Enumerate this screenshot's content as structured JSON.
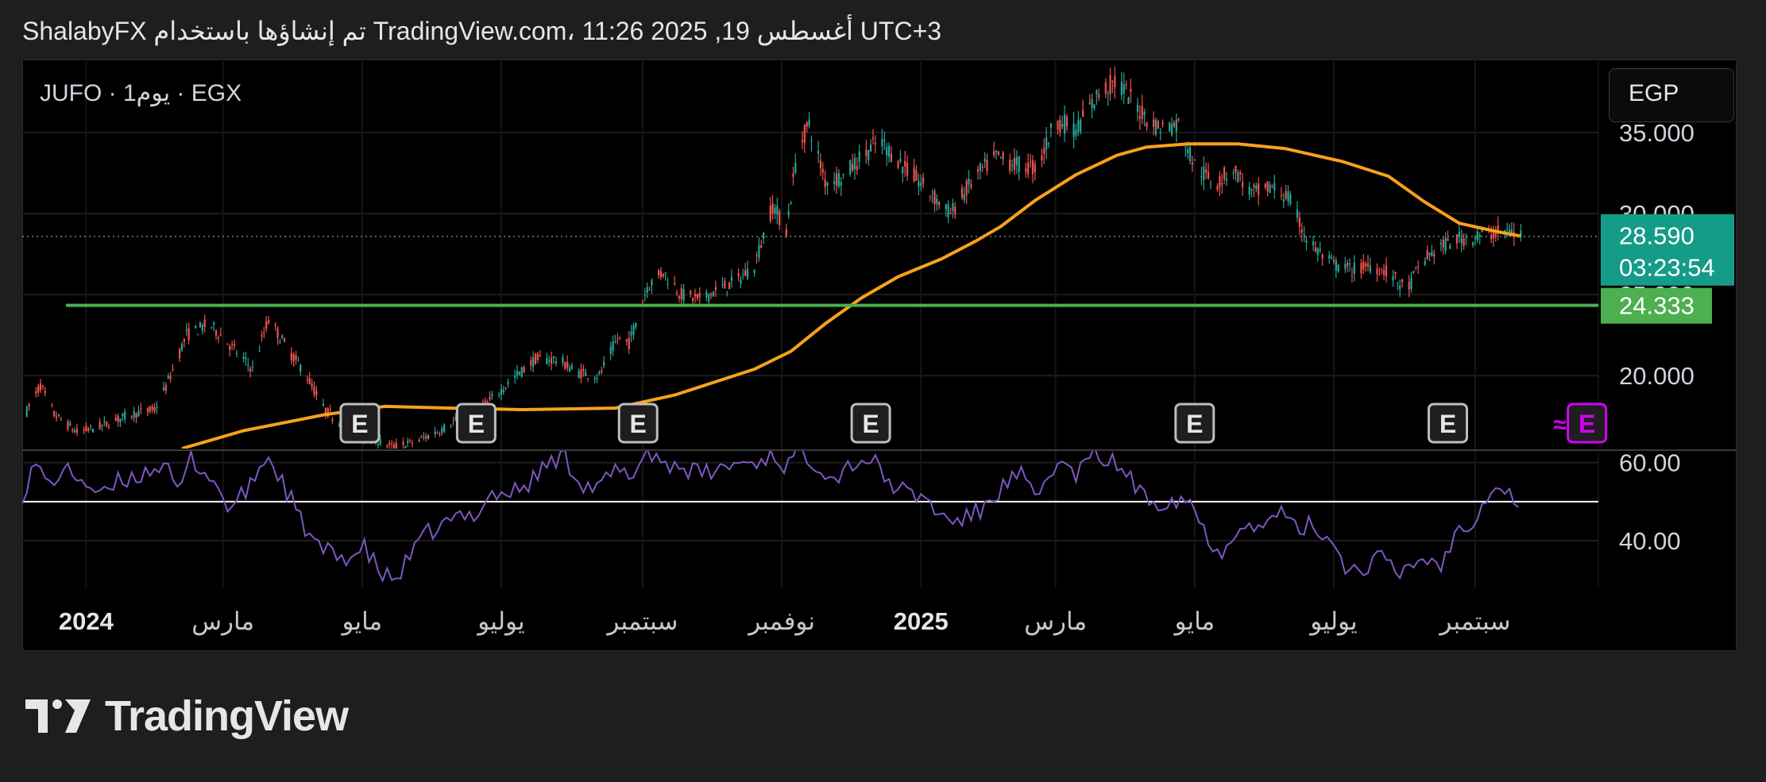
{
  "header": {
    "text": "ShalabyFX تم إنشاؤها باستخدام TradingView.com، 11:26 2025 ,19 أغسطس UTC+3"
  },
  "symbol_line": "JUFO · 1يوم · EGX",
  "currency_button": "EGP",
  "price_label": {
    "price": "28.590",
    "countdown": "03:23:54",
    "bg": "#159c88"
  },
  "level_label": {
    "price": "24.333",
    "bg": "#4caf50"
  },
  "earnings_marker": "E",
  "earnings_upcoming_prefix": "≈",
  "brand": {
    "name": "TradingView"
  },
  "colors": {
    "up": "#26a69a",
    "down": "#ef5350",
    "ma": "#f7a21b",
    "rsi": "#7e57c2",
    "level": "#4caf50",
    "upcoming": "#d500f9"
  },
  "chart_data": {
    "type": "candlestick",
    "price_axis": {
      "ticks": [
        20,
        25,
        30,
        35
      ],
      "tick_labels": [
        "20.000",
        "25.000",
        "30.000",
        "35.000"
      ],
      "range": [
        15.5,
        39.5
      ]
    },
    "rsi_axis": {
      "ticks": [
        40,
        60
      ],
      "tick_labels": [
        "40.00",
        "60.00"
      ],
      "range": [
        28,
        63
      ],
      "reference_line": 50
    },
    "time_axis": {
      "range": [
        "2023-12-04",
        "2025-10-25"
      ],
      "labels": [
        {
          "date": "2024-01-01",
          "text": "2024",
          "bold": true
        },
        {
          "date": "2024-03-01",
          "text": "مارس"
        },
        {
          "date": "2024-05-01",
          "text": "مايو"
        },
        {
          "date": "2024-07-01",
          "text": "يوليو"
        },
        {
          "date": "2024-09-01",
          "text": "سبتمبر"
        },
        {
          "date": "2024-11-01",
          "text": "نوفمبر"
        },
        {
          "date": "2025-01-01",
          "text": "2025",
          "bold": true
        },
        {
          "date": "2025-03-01",
          "text": "مارس"
        },
        {
          "date": "2025-05-01",
          "text": "مايو"
        },
        {
          "date": "2025-07-01",
          "text": "يوليو"
        },
        {
          "date": "2025-09-01",
          "text": "سبتمبر"
        }
      ]
    },
    "horizontal_level": 24.333,
    "last_price": 28.59,
    "price_path": [
      [
        "2023-12-06",
        17.8
      ],
      [
        "2023-12-12",
        19.4
      ],
      [
        "2023-12-18",
        17.6
      ],
      [
        "2023-12-28",
        16.5
      ],
      [
        "2024-01-08",
        16.9
      ],
      [
        "2024-01-20",
        17.6
      ],
      [
        "2024-01-31",
        17.9
      ],
      [
        "2024-02-05",
        19.3
      ],
      [
        "2024-02-14",
        22.5
      ],
      [
        "2024-02-24",
        23.2
      ],
      [
        "2024-03-04",
        21.9
      ],
      [
        "2024-03-14",
        20.4
      ],
      [
        "2024-03-21",
        23.5
      ],
      [
        "2024-03-30",
        21.5
      ],
      [
        "2024-04-06",
        20.2
      ],
      [
        "2024-04-14",
        18.0
      ],
      [
        "2024-04-24",
        16.7
      ],
      [
        "2024-05-04",
        16.2
      ],
      [
        "2024-05-14",
        15.6
      ],
      [
        "2024-05-24",
        15.9
      ],
      [
        "2024-06-04",
        16.6
      ],
      [
        "2024-06-15",
        17.6
      ],
      [
        "2024-06-25",
        18.3
      ],
      [
        "2024-07-06",
        19.8
      ],
      [
        "2024-07-16",
        21.0
      ],
      [
        "2024-07-26",
        21.0
      ],
      [
        "2024-08-03",
        20.2
      ],
      [
        "2024-08-13",
        20.0
      ],
      [
        "2024-08-21",
        22.3
      ],
      [
        "2024-08-26",
        22.0
      ],
      [
        "2024-09-03",
        25.5
      ],
      [
        "2024-09-10",
        26.4
      ],
      [
        "2024-09-18",
        25.0
      ],
      [
        "2024-09-26",
        24.7
      ],
      [
        "2024-10-04",
        25.3
      ],
      [
        "2024-10-12",
        25.8
      ],
      [
        "2024-10-20",
        26.8
      ],
      [
        "2024-10-28",
        30.5
      ],
      [
        "2024-11-03",
        29.0
      ],
      [
        "2024-11-08",
        34.0
      ],
      [
        "2024-11-13",
        35.5
      ],
      [
        "2024-11-20",
        32.0
      ],
      [
        "2024-11-28",
        32.3
      ],
      [
        "2024-12-06",
        33.5
      ],
      [
        "2024-12-14",
        34.5
      ],
      [
        "2024-12-24",
        33.0
      ],
      [
        "2025-01-04",
        31.4
      ],
      [
        "2025-01-14",
        30.0
      ],
      [
        "2025-01-25",
        32.3
      ],
      [
        "2025-02-03",
        33.5
      ],
      [
        "2025-02-12",
        33.0
      ],
      [
        "2025-02-21",
        32.8
      ],
      [
        "2025-03-01",
        35.8
      ],
      [
        "2025-03-10",
        35.2
      ],
      [
        "2025-03-20",
        37.4
      ],
      [
        "2025-03-28",
        38.2
      ],
      [
        "2025-04-06",
        36.5
      ],
      [
        "2025-04-15",
        35.3
      ],
      [
        "2025-04-24",
        35.5
      ],
      [
        "2025-05-01",
        33.0
      ],
      [
        "2025-05-10",
        31.8
      ],
      [
        "2025-05-18",
        32.8
      ],
      [
        "2025-05-26",
        31.2
      ],
      [
        "2025-06-04",
        31.6
      ],
      [
        "2025-06-11",
        31.0
      ],
      [
        "2025-06-20",
        28.2
      ],
      [
        "2025-06-30",
        26.9
      ],
      [
        "2025-07-09",
        26.5
      ],
      [
        "2025-07-17",
        26.8
      ],
      [
        "2025-07-25",
        26.4
      ],
      [
        "2025-08-02",
        25.2
      ],
      [
        "2025-08-08",
        26.9
      ],
      [
        "2025-08-15",
        27.8
      ],
      [
        "2025-08-24",
        28.4
      ],
      [
        "2025-09-02",
        28.6
      ],
      [
        "2025-09-10",
        28.8
      ],
      [
        "2025-09-16",
        28.9
      ],
      [
        "2025-09-21",
        28.6
      ]
    ],
    "ma_path": [
      [
        "2024-02-12",
        15.5
      ],
      [
        "2024-03-10",
        16.6
      ],
      [
        "2024-04-15",
        17.6
      ],
      [
        "2024-05-11",
        18.1
      ],
      [
        "2024-06-08",
        18.0
      ],
      [
        "2024-07-10",
        17.9
      ],
      [
        "2024-08-20",
        18.0
      ],
      [
        "2024-09-15",
        18.8
      ],
      [
        "2024-10-20",
        20.4
      ],
      [
        "2024-11-05",
        21.5
      ],
      [
        "2024-11-20",
        23.2
      ],
      [
        "2024-12-06",
        24.8
      ],
      [
        "2024-12-22",
        26.1
      ],
      [
        "2025-01-10",
        27.2
      ],
      [
        "2025-01-25",
        28.3
      ],
      [
        "2025-02-05",
        29.2
      ],
      [
        "2025-02-20",
        30.8
      ],
      [
        "2025-03-10",
        32.4
      ],
      [
        "2025-03-28",
        33.6
      ],
      [
        "2025-04-10",
        34.1
      ],
      [
        "2025-04-28",
        34.3
      ],
      [
        "2025-05-20",
        34.3
      ],
      [
        "2025-06-10",
        34.0
      ],
      [
        "2025-07-05",
        33.2
      ],
      [
        "2025-07-25",
        32.3
      ],
      [
        "2025-08-10",
        30.7
      ],
      [
        "2025-08-25",
        29.4
      ],
      [
        "2025-09-10",
        28.9
      ],
      [
        "2025-09-21",
        28.6
      ]
    ],
    "rsi_path": [
      [
        "2023-12-04",
        52
      ],
      [
        "2023-12-10",
        60
      ],
      [
        "2023-12-15",
        54
      ],
      [
        "2023-12-22",
        58
      ],
      [
        "2023-12-30",
        56
      ],
      [
        "2024-01-08",
        51
      ],
      [
        "2024-01-15",
        55
      ],
      [
        "2024-01-25",
        57
      ],
      [
        "2024-02-04",
        60
      ],
      [
        "2024-02-10",
        52
      ],
      [
        "2024-02-16",
        61
      ],
      [
        "2024-02-25",
        56
      ],
      [
        "2024-03-04",
        48
      ],
      [
        "2024-03-12",
        53
      ],
      [
        "2024-03-20",
        62
      ],
      [
        "2024-03-28",
        54
      ],
      [
        "2024-04-05",
        44
      ],
      [
        "2024-04-12",
        38
      ],
      [
        "2024-04-20",
        36
      ],
      [
        "2024-04-26",
        36
      ],
      [
        "2024-05-02",
        38
      ],
      [
        "2024-05-10",
        31
      ],
      [
        "2024-05-16",
        30
      ],
      [
        "2024-05-22",
        36
      ],
      [
        "2024-05-30",
        42
      ],
      [
        "2024-06-06",
        44
      ],
      [
        "2024-06-12",
        46
      ],
      [
        "2024-06-20",
        47
      ],
      [
        "2024-06-26",
        52
      ],
      [
        "2024-07-04",
        52
      ],
      [
        "2024-07-12",
        54
      ],
      [
        "2024-07-20",
        59
      ],
      [
        "2024-07-28",
        62
      ],
      [
        "2024-08-05",
        55
      ],
      [
        "2024-08-12",
        53
      ],
      [
        "2024-08-20",
        58
      ],
      [
        "2024-08-26",
        56
      ],
      [
        "2024-09-03",
        63
      ],
      [
        "2024-09-10",
        60
      ],
      [
        "2024-09-18",
        59
      ],
      [
        "2024-09-26",
        57
      ],
      [
        "2024-10-04",
        58
      ],
      [
        "2024-10-12",
        60
      ],
      [
        "2024-10-20",
        60
      ],
      [
        "2024-10-28",
        62
      ],
      [
        "2024-11-03",
        59
      ],
      [
        "2024-11-09",
        63
      ],
      [
        "2024-11-16",
        60
      ],
      [
        "2024-11-24",
        56
      ],
      [
        "2024-12-02",
        60
      ],
      [
        "2024-12-10",
        61
      ],
      [
        "2024-12-18",
        55
      ],
      [
        "2024-12-26",
        52
      ],
      [
        "2025-01-03",
        51
      ],
      [
        "2025-01-10",
        46
      ],
      [
        "2025-01-18",
        45
      ],
      [
        "2025-01-28",
        48
      ],
      [
        "2025-02-06",
        54
      ],
      [
        "2025-02-14",
        57
      ],
      [
        "2025-02-20",
        50
      ],
      [
        "2025-03-01",
        60
      ],
      [
        "2025-03-10",
        57
      ],
      [
        "2025-03-18",
        62
      ],
      [
        "2025-03-26",
        60
      ],
      [
        "2025-04-02",
        57
      ],
      [
        "2025-04-08",
        51
      ],
      [
        "2025-04-16",
        50
      ],
      [
        "2025-04-24",
        51
      ],
      [
        "2025-04-30",
        50
      ],
      [
        "2025-05-06",
        41
      ],
      [
        "2025-05-14",
        37
      ],
      [
        "2025-05-22",
        46
      ],
      [
        "2025-05-30",
        42
      ],
      [
        "2025-06-06",
        48
      ],
      [
        "2025-06-14",
        43
      ],
      [
        "2025-06-22",
        44
      ],
      [
        "2025-06-30",
        40
      ],
      [
        "2025-07-08",
        32
      ],
      [
        "2025-07-14",
        33
      ],
      [
        "2025-07-21",
        36
      ],
      [
        "2025-07-29",
        31
      ],
      [
        "2025-08-06",
        35
      ],
      [
        "2025-08-12",
        35
      ],
      [
        "2025-08-18",
        34
      ],
      [
        "2025-08-24",
        43
      ],
      [
        "2025-09-01",
        46
      ],
      [
        "2025-09-09",
        55
      ],
      [
        "2025-09-16",
        52
      ],
      [
        "2025-09-21",
        49
      ]
    ],
    "earnings": [
      {
        "date": "2024-04-30",
        "upcoming": false
      },
      {
        "date": "2024-06-20",
        "upcoming": false
      },
      {
        "date": "2024-08-30",
        "upcoming": false
      },
      {
        "date": "2024-12-10",
        "upcoming": false
      },
      {
        "date": "2025-05-01",
        "upcoming": false
      },
      {
        "date": "2025-08-20",
        "upcoming": false
      },
      {
        "date": "2025-10-20",
        "upcoming": true
      }
    ]
  }
}
